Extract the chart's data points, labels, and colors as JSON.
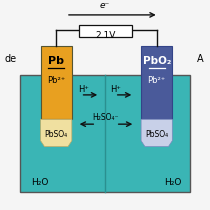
{
  "bg_color": "#f5f5f5",
  "electrolyte_color": "#3ab5b5",
  "anode_color": "#e8a020",
  "cathode_color": "#4a5a9a",
  "pbso4_anode_color": "#f0e0a0",
  "pbso4_cathode_color": "#c8d0e8",
  "wire_color": "#111111",
  "arrow_color": "#111111",
  "title_voltage": "2.1V",
  "text_de": "de",
  "text_A": "A",
  "text_e": "e⁻",
  "text_anode_top": "Pb",
  "text_anode_mid": "Pb²⁺",
  "text_anode_bot": "PbSO₄",
  "text_cathode_top": "PbO₂",
  "text_cathode_mid": "Pb²⁺",
  "text_cathode_bot": "PbSO₄",
  "text_h2so4": "H₂SO₄⁻",
  "text_h_left": "H⁺",
  "text_h_right": "H⁺",
  "text_h2o_left": "H₂O",
  "text_h2o_right": "H₂O",
  "fig_width": 2.1,
  "fig_height": 2.1,
  "dpi": 100
}
